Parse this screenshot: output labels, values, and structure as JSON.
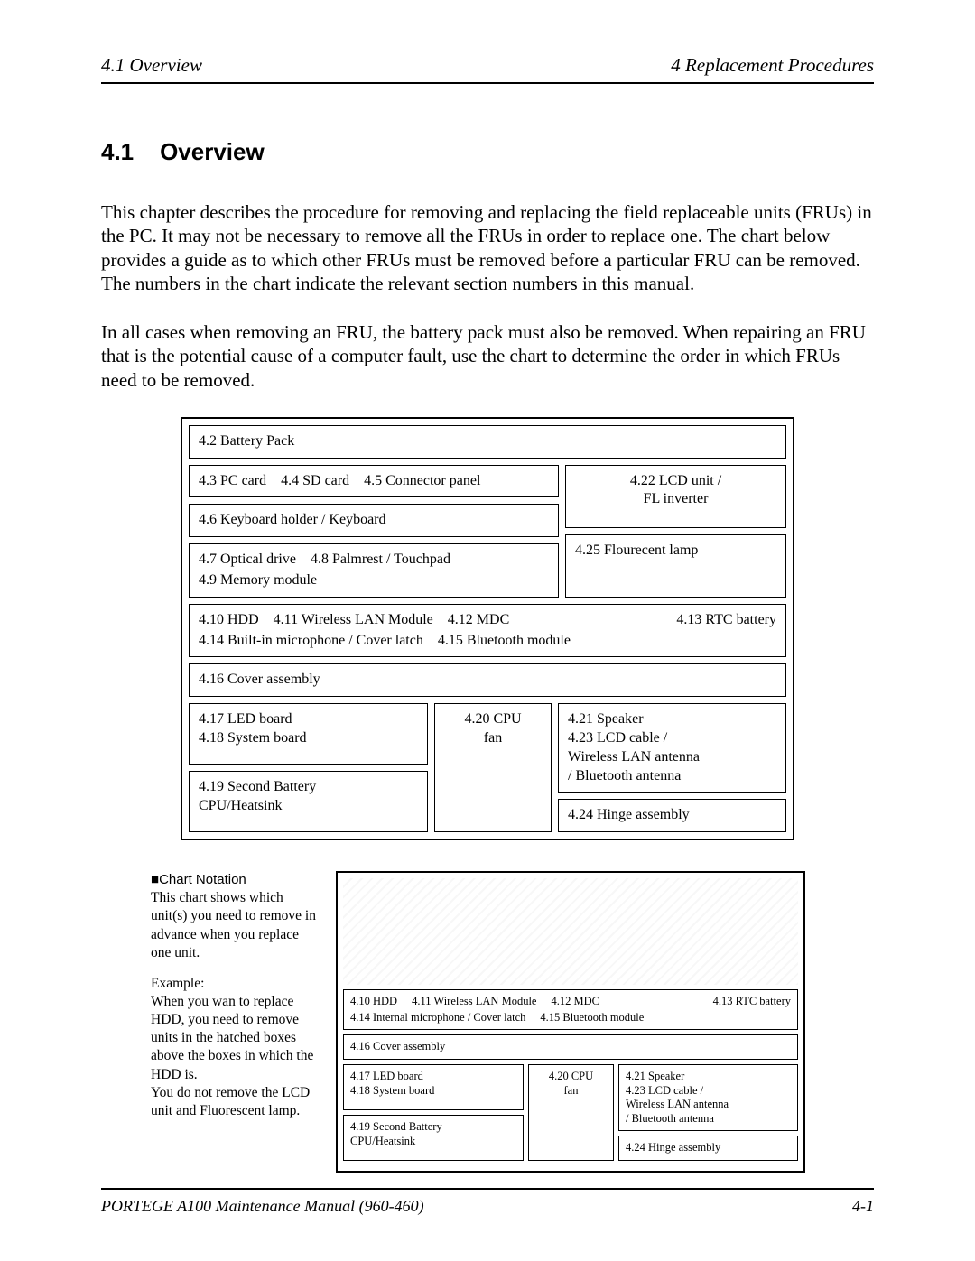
{
  "header": {
    "left": "4.1  Overview",
    "right": "4  Replacement Procedures"
  },
  "section": {
    "number": "4.1",
    "title": "Overview"
  },
  "paragraphs": {
    "p1": "This chapter describes the procedure for removing and replacing the field replaceable units (FRUs) in the PC. It may not be necessary to remove all the FRUs in order to replace one. The chart below provides a guide as to which other FRUs must be removed before a particular FRU can be removed. The numbers in the chart indicate the relevant section numbers in this manual.",
    "p2": "In all cases when removing an FRU, the battery pack must also be removed. When repairing an FRU that is the potential cause of a computer fault, use the chart to determine the order in which FRUs need to be removed."
  },
  "chart": {
    "r1": "4.2  Battery Pack",
    "r2a": "4.3  PC card",
    "r2b": "4.4 SD card",
    "r2c": "4.5 Connector panel",
    "r2_right1": "4.22 LCD unit /\nFL inverter",
    "r2_right2": "4.25 Flourecent lamp",
    "r3": "4.6  Keyboard holder / Keyboard",
    "r4a": "4.7  Optical drive",
    "r4b": "4.8  Palmrest / Touchpad",
    "r4c": "4.9  Memory module",
    "r5a": "4.10 HDD",
    "r5b": "4.11 Wireless LAN Module",
    "r5c": "4.12 MDC",
    "r5d": "4.13 RTC battery",
    "r5e": "4.14 Built-in microphone / Cover latch",
    "r5f": "4.15 Bluetooth module",
    "r6": "4.16 Cover assembly",
    "r7_left1a": "4.17 LED board",
    "r7_left1b": "4.18 System board",
    "r7_mid": "4.20 CPU\nfan",
    "r7_right1": "4.21 Speaker\n4.23 LCD cable /\n       Wireless LAN antenna\n        / Bluetooth antenna",
    "r7_left2": "4.19 Second Battery\n         CPU/Heatsink",
    "r7_right2": "4.24 Hinge assembly"
  },
  "notation": {
    "head_symbol": "■",
    "head": "Chart Notation",
    "p1": "This chart shows which unit(s) you need to remove in advance when you replace one unit.",
    "p2": "Example:\nWhen you wan to replace   HDD, you need to remove units in the hatched boxes above the boxes in which the HDD is.\nYou do not remove the LCD unit and Fluorescent lamp."
  },
  "mini_chart": {
    "r5a": "4.10 HDD",
    "r5b": "4.11 Wireless LAN Module",
    "r5c": "4.12 MDC",
    "r5d": "4.13 RTC battery",
    "r5e": "4.14 Internal microphone / Cover latch",
    "r5f": "4.15 Bluetooth module",
    "r6": "4.16 Cover assembly",
    "r7_left1a": "4.17 LED board",
    "r7_left1b": "4.18 System board",
    "r7_mid": "4.20 CPU\nfan",
    "r7_right1": "4.21 Speaker\n4.23 LCD cable /\n     Wireless LAN antenna\n      / Bluetooth antenna",
    "r7_left2": "4.19 Second Battery\n       CPU/Heatsink",
    "r7_right2": "4.24 Hinge assembly"
  },
  "footer": {
    "left": "PORTEGE A100 Maintenance Manual (960-460)",
    "right": "4-1"
  }
}
